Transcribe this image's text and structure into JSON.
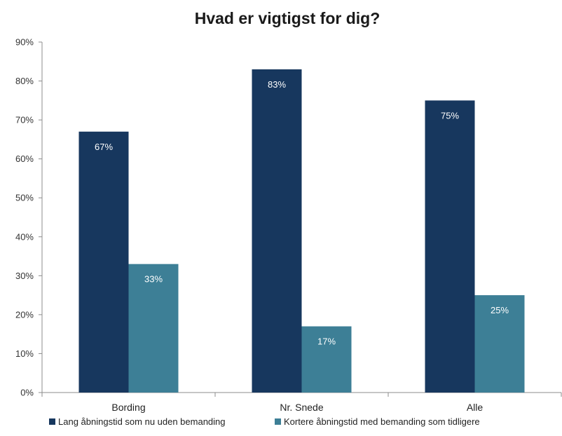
{
  "chart_data": {
    "type": "bar",
    "title": "Hvad er vigtigst for dig?",
    "xlabel": "",
    "ylabel": "",
    "categories": [
      "Bording",
      "Nr. Snede",
      "Alle"
    ],
    "series": [
      {
        "name": "Lang åbningstid som nu uden bemanding",
        "color": "#17375e",
        "values": [
          67,
          83,
          75
        ],
        "labels": [
          "67%",
          "83%",
          "75%"
        ]
      },
      {
        "name": "Kortere åbningstid med bemanding som tidligere",
        "color": "#3d7f96",
        "values": [
          33,
          17,
          25
        ],
        "labels": [
          "33%",
          "17%",
          "25%"
        ]
      }
    ],
    "ylim": [
      0,
      90
    ],
    "yticks": [
      0,
      10,
      20,
      30,
      40,
      50,
      60,
      70,
      80,
      90
    ],
    "ytick_labels": [
      "0%",
      "10%",
      "20%",
      "30%",
      "40%",
      "50%",
      "60%",
      "70%",
      "80%",
      "90%"
    ],
    "grid": false,
    "legend_position": "bottom"
  }
}
